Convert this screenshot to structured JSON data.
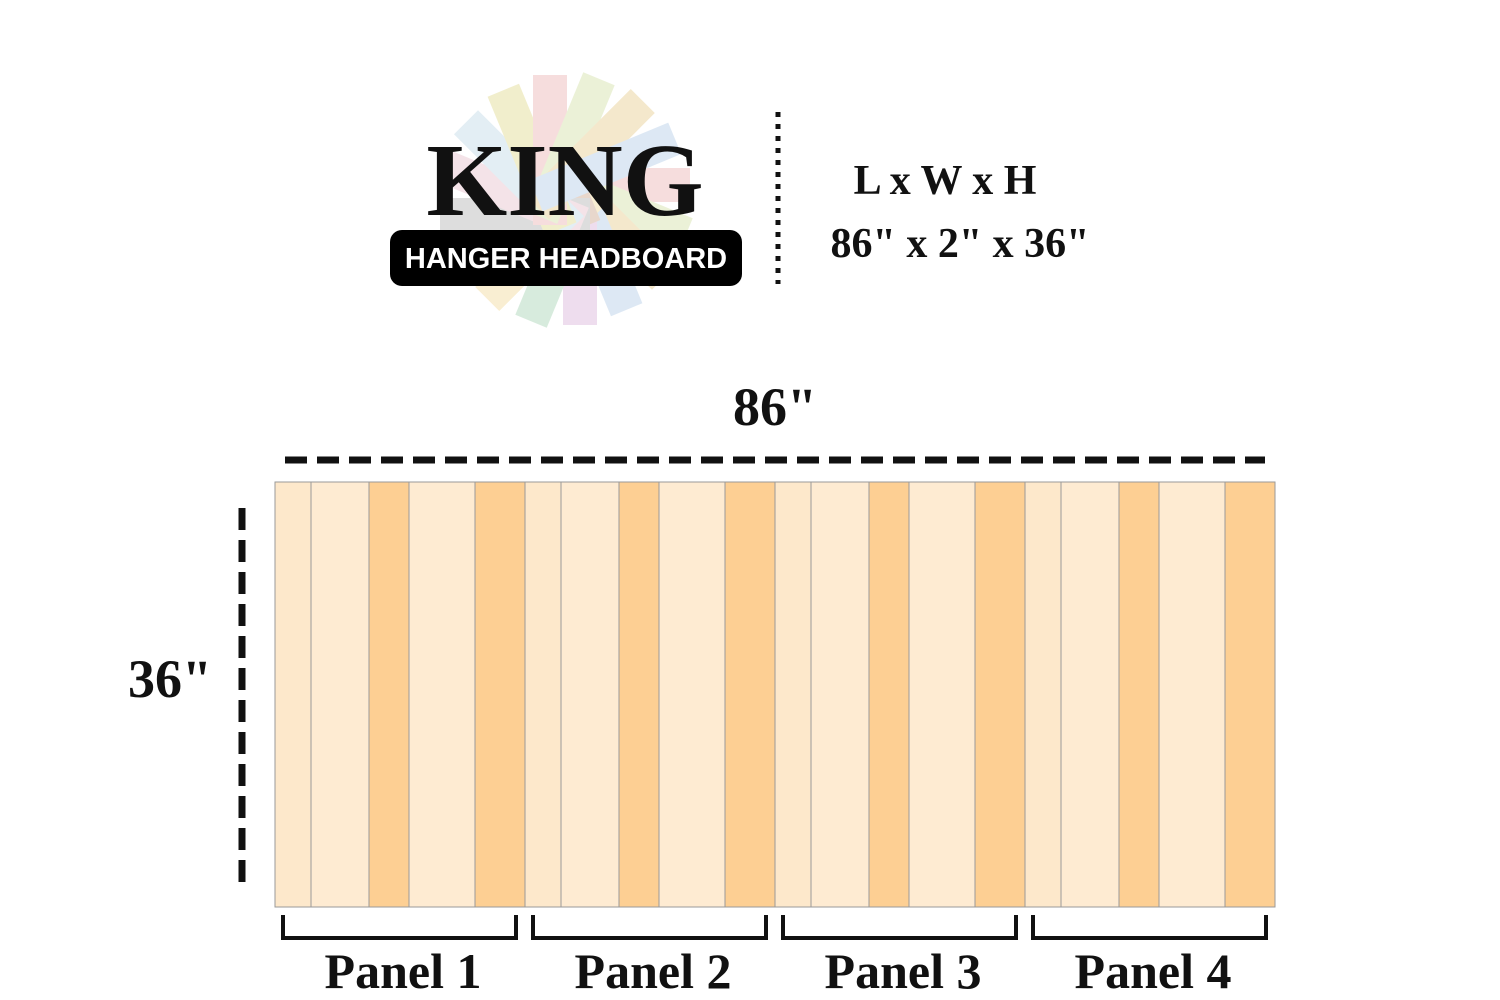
{
  "logo": {
    "title": "KING",
    "subtitle": "HANGER HEADBOARD"
  },
  "dimensions": {
    "label": "L x W x H",
    "value": "86\" x 2\" x 36\""
  },
  "diagram": {
    "width_label": "86\"",
    "height_label": "36\"",
    "panels": [
      "Panel 1",
      "Panel 2",
      "Panel 3",
      "Panel 4"
    ]
  }
}
